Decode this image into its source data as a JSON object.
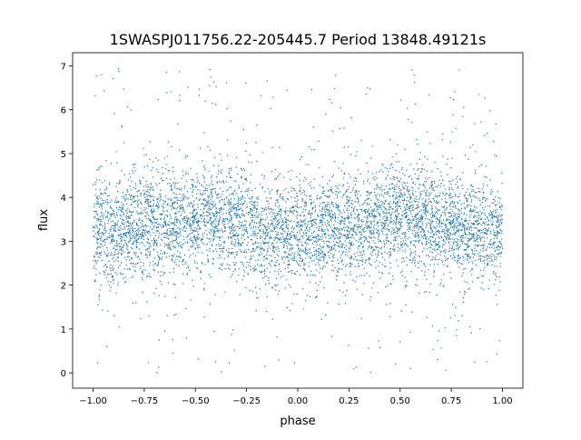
{
  "chart_data": {
    "type": "scatter",
    "title": "1SWASPJ011756.22-205445.7 Period 13848.49121s",
    "xlabel": "phase",
    "ylabel": "flux",
    "xlim": [
      -1.1,
      1.1
    ],
    "ylim": [
      -0.35,
      7.3
    ],
    "xticks": [
      "−1.00",
      "−0.75",
      "−0.50",
      "−0.25",
      "0.00",
      "0.25",
      "0.50",
      "0.75",
      "1.00"
    ],
    "xtick_values": [
      -1,
      -0.75,
      -0.5,
      -0.25,
      0,
      0.25,
      0.5,
      0.75,
      1
    ],
    "yticks": [
      "0",
      "1",
      "2",
      "3",
      "4",
      "5",
      "6",
      "7"
    ],
    "ytick_values": [
      0,
      1,
      2,
      3,
      4,
      5,
      6,
      7
    ],
    "grid": false,
    "point_color": "#1f77b4",
    "trend": {
      "phase": [
        -1,
        -0.75,
        -0.5,
        -0.25,
        0,
        0.25,
        0.5,
        0.75,
        1
      ],
      "median_flux": [
        3.2,
        3.4,
        3.55,
        3.35,
        3.1,
        3.35,
        3.55,
        3.35,
        3.2
      ],
      "spread_std": 0.6
    },
    "flux_range": [
      0,
      7
    ]
  }
}
